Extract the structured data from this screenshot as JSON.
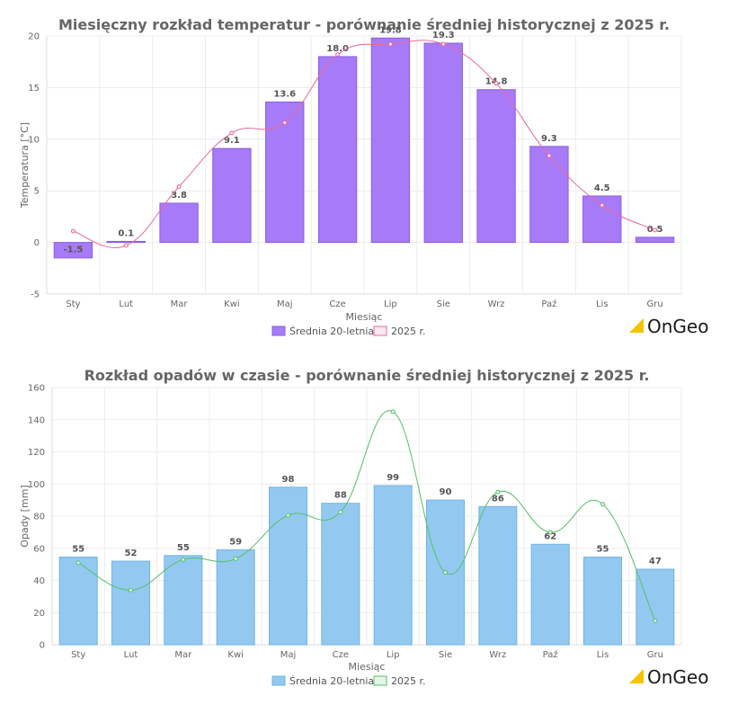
{
  "chart_data": [
    {
      "type": "bar",
      "title": "Miesięczny rozkład temperatur  - porównanie średniej historycznej z 2025 r.",
      "xlabel": "Miesiąc",
      "ylabel": "Temperatura [°C]",
      "ylim": [
        -5,
        20
      ],
      "yticks": [
        -5,
        0,
        5,
        10,
        15,
        20
      ],
      "grid": true,
      "legend_position": "bottom",
      "categories": [
        "Sty",
        "Lut",
        "Mar",
        "Kwi",
        "Maj",
        "Cze",
        "Lip",
        "Sie",
        "Wrz",
        "Paź",
        "Lis",
        "Gru"
      ],
      "series": [
        {
          "name": "Średnia 20-letnia",
          "type": "bar",
          "color": "#a77bf7",
          "border": "#8a5ce6",
          "values": [
            -1.5,
            0.1,
            3.8,
            9.1,
            13.6,
            18.0,
            19.8,
            19.3,
            14.8,
            9.3,
            4.5,
            0.5
          ],
          "labels": [
            "-1.5",
            "0.1",
            "3.8",
            "9.1",
            "13.6",
            "18.0",
            "19.8",
            "19.3",
            "14.8",
            "9.3",
            "4.5",
            "0.5"
          ]
        },
        {
          "name": "2025 r.",
          "type": "line",
          "color": "#e66a9a",
          "fill": "#fde8ef",
          "values": [
            1.1,
            -0.3,
            5.4,
            10.6,
            11.6,
            18.2,
            19.2,
            19.2,
            15.4,
            8.4,
            3.6,
            1.2
          ]
        }
      ]
    },
    {
      "type": "bar",
      "title": "Rozkład opadów w czasie - porównanie średniej historycznej z 2025 r.",
      "xlabel": "Miesiąc",
      "ylabel": "Opady [mm]",
      "ylim": [
        0,
        160
      ],
      "yticks": [
        0,
        20,
        40,
        60,
        80,
        100,
        120,
        140,
        160
      ],
      "grid": true,
      "legend_position": "bottom",
      "categories": [
        "Sty",
        "Lut",
        "Mar",
        "Kwi",
        "Maj",
        "Cze",
        "Lip",
        "Sie",
        "Wrz",
        "Paź",
        "Lis",
        "Gru"
      ],
      "series": [
        {
          "name": "Średnia 20-letnia",
          "type": "bar",
          "color": "#93c9f0",
          "border": "#6fb3e6",
          "values": [
            54.5,
            52,
            55.5,
            59,
            98,
            88,
            99,
            90,
            86,
            62.5,
            54.5,
            47
          ],
          "labels": [
            "55",
            "52",
            "55",
            "59",
            "98",
            "88",
            "99",
            "90",
            "86",
            "62",
            "55",
            "47"
          ]
        },
        {
          "name": "2025 r.",
          "type": "line",
          "color": "#55c065",
          "fill": "#e6f6e6",
          "values": [
            51,
            34,
            53,
            53.5,
            80.5,
            82.5,
            145,
            45,
            95,
            70,
            87.5,
            15
          ]
        }
      ]
    }
  ],
  "logo": {
    "text": "OnGeo",
    "mark_color": "#f5c400"
  }
}
